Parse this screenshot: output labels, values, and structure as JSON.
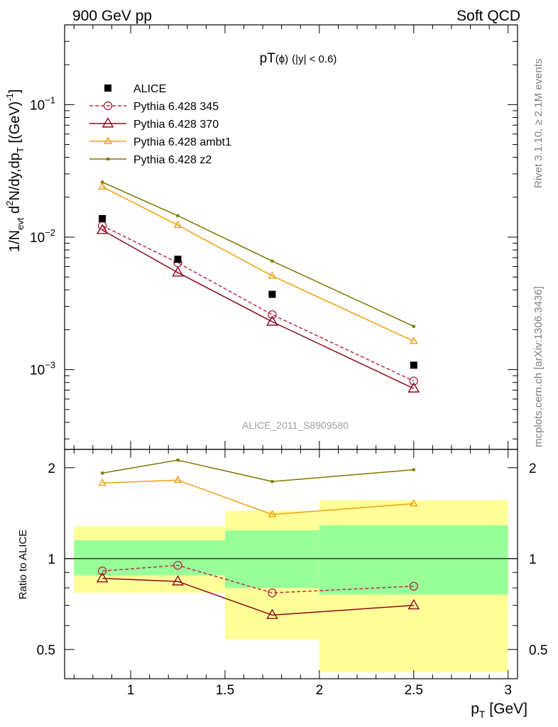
{
  "header": {
    "left": "900 GeV pp",
    "right": "Soft QCD"
  },
  "side_labels": {
    "rivet": "Rivet 3.1.10, ≥ 2.1M events",
    "source": "mcplots.cern.ch [arXiv:1306.3436]"
  },
  "watermark": "ALICE_2011_S8909580",
  "chart_data": {
    "type": "line",
    "title_parts": {
      "main": "pT",
      "sub": "(ϕ)",
      "cut": "(|y| < 0.6)"
    },
    "ylabel_parts": {
      "a": "1/N",
      "a_sub": "evt",
      "b": " d",
      "b_sup": "2",
      "c": "N/dy,dp",
      "c_sub": "T",
      "d": " [(GeV)",
      "d_sup": "-1",
      "e": "]"
    },
    "xlabel_parts": {
      "main": "p",
      "sub": "T",
      "unit": " [GeV]"
    },
    "ratio_ylabel": "Ratio to ALICE",
    "x": [
      0.85,
      1.25,
      1.75,
      2.5
    ],
    "xlim": [
      0.65,
      3.05
    ],
    "ylim": [
      0.00025,
      0.4
    ],
    "yscale": "log",
    "ratio_ylim": [
      0.4,
      2.3
    ],
    "ratio_yscale": "log",
    "x_ticks": [
      1,
      1.5,
      2,
      2.5,
      3
    ],
    "x_tick_labels": [
      "1",
      "1.5",
      "2",
      "2.5",
      "3"
    ],
    "y_tick_labels": [
      {
        "base": "10",
        "exp": "−1"
      },
      {
        "base": "10",
        "exp": "−2"
      },
      {
        "base": "10",
        "exp": "−3"
      }
    ],
    "ratio_ticks": [
      0.5,
      1,
      2
    ],
    "ratio_tick_labels": [
      "0.5",
      "1",
      "2"
    ],
    "legend_position": "top-left",
    "reference": {
      "name": "ALICE",
      "values": [
        0.0138,
        0.0068,
        0.0037,
        0.00108
      ],
      "color": "#000000"
    },
    "series": [
      {
        "name": "Pythia 6.428 345",
        "values": [
          0.0122,
          0.0064,
          0.0026,
          0.00082
        ],
        "ratio": [
          0.91,
          0.95,
          0.77,
          0.81
        ],
        "color": "#b0304a",
        "marker": "circle",
        "dash": true
      },
      {
        "name": "Pythia 6.428 370",
        "values": [
          0.0113,
          0.0054,
          0.0023,
          0.00072
        ],
        "ratio": [
          0.86,
          0.84,
          0.65,
          0.7
        ],
        "color": "#8b0a1e",
        "marker": "triangle",
        "dash": false
      },
      {
        "name": "Pythia 6.428 ambt1",
        "values": [
          0.024,
          0.0123,
          0.0051,
          0.00164
        ],
        "ratio": [
          1.78,
          1.82,
          1.4,
          1.52
        ],
        "color": "#f0a010",
        "marker": "triangle-small",
        "dash": false
      },
      {
        "name": "Pythia 6.428 z2",
        "values": [
          0.026,
          0.0145,
          0.0066,
          0.00212
        ],
        "ratio": [
          1.92,
          2.12,
          1.8,
          1.97
        ],
        "color": "#7a7a00",
        "marker": "dot",
        "dash": false
      }
    ],
    "uncertainty_bands": [
      {
        "x_range": [
          0.7,
          1.5
        ],
        "inner": [
          0.88,
          1.15
        ],
        "outer": [
          0.77,
          1.28
        ]
      },
      {
        "x_range": [
          1.5,
          2.0
        ],
        "inner": [
          0.8,
          1.24
        ],
        "outer": [
          0.54,
          1.44
        ]
      },
      {
        "x_range": [
          2.0,
          3.0
        ],
        "inner": [
          0.76,
          1.29
        ],
        "outer": [
          0.42,
          1.56
        ]
      }
    ],
    "band_colors": {
      "inner": "#99ff99",
      "outer": "#ffff99"
    }
  }
}
